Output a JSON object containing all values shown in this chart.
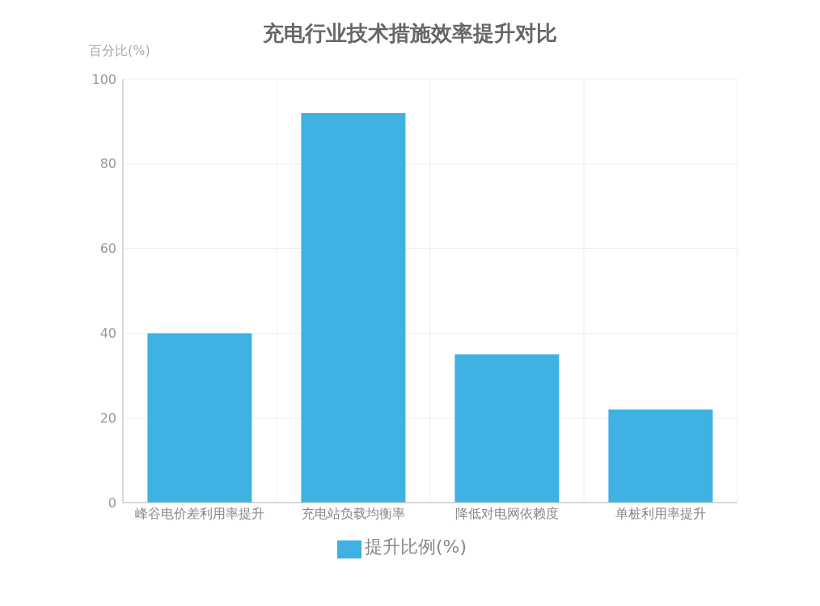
{
  "chart_data": {
    "type": "bar",
    "title": "充电行业技术措施效率提升对比",
    "ylabel": "百分比(%)",
    "categories": [
      "峰谷电价差利用率提升",
      "充电站负载均衡率",
      "降低对电网依赖度",
      "单桩利用率提升"
    ],
    "series": [
      {
        "name": "提升比例(%)",
        "color": "#3fb1e3",
        "values": [
          40,
          92,
          35,
          22
        ]
      }
    ],
    "ylim": [
      0,
      100
    ],
    "yticks": [
      0,
      20,
      40,
      60,
      80,
      100
    ],
    "grid": true,
    "legend": "bottom"
  }
}
